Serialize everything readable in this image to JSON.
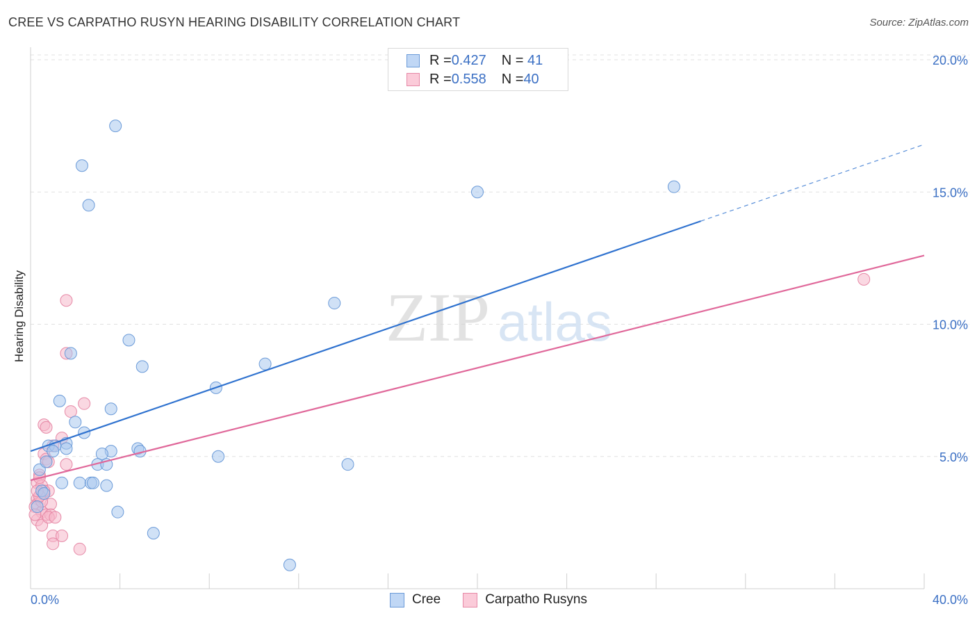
{
  "header": {
    "title": "CREE VS CARPATHO RUSYN HEARING DISABILITY CORRELATION CHART",
    "source": "Source: ZipAtlas.com"
  },
  "watermark": {
    "zip": "ZIP",
    "atlas": "atlas"
  },
  "legend": {
    "rows": [
      {
        "r_label": "R = ",
        "r_value": "0.427",
        "n_label": "N = ",
        "n_value": " 41"
      },
      {
        "r_label": "R = ",
        "r_value": "0.558",
        "n_label": "N = ",
        "n_value": "40"
      }
    ]
  },
  "bottom_legend": {
    "cree": "Cree",
    "carpatho": "Carpatho Rusyns"
  },
  "colors": {
    "cree_fill": "#aac8ef",
    "cree_stroke": "#6a9ad8",
    "cree_line": "#2f72cf",
    "carp_fill": "#f6b8cb",
    "carp_stroke": "#e688a6",
    "carp_line": "#e0689a",
    "tick_label": "#3a6fc4"
  },
  "chart_data": {
    "type": "scatter",
    "title": "CREE VS CARPATHO RUSYN HEARING DISABILITY CORRELATION CHART",
    "xlabel": "",
    "ylabel": "Hearing Disability",
    "xlim": [
      0,
      40
    ],
    "ylim": [
      0,
      20.5
    ],
    "y_ticks": [
      5,
      10,
      15,
      20
    ],
    "y_tick_labels": [
      "5.0%",
      "10.0%",
      "15.0%",
      "20.0%"
    ],
    "x_tick_labels": [
      "0.0%",
      "40.0%"
    ],
    "grid": true,
    "series": [
      {
        "name": "Cree",
        "r": 0.427,
        "n": 41,
        "trend": {
          "x0": 0,
          "y0": 5.2,
          "x1": 30,
          "y1": 13.9,
          "dashed_to_x": 40,
          "dashed_to_y": 16.8
        },
        "points": [
          [
            3.8,
            17.5
          ],
          [
            2.3,
            16.0
          ],
          [
            2.6,
            14.5
          ],
          [
            20,
            15.0
          ],
          [
            28.8,
            15.2
          ],
          [
            13.6,
            10.8
          ],
          [
            4.4,
            9.4
          ],
          [
            1.8,
            8.9
          ],
          [
            5.0,
            8.4
          ],
          [
            10.5,
            8.5
          ],
          [
            8.3,
            7.6
          ],
          [
            1.3,
            7.1
          ],
          [
            3.6,
            6.8
          ],
          [
            2.0,
            6.3
          ],
          [
            2.4,
            5.9
          ],
          [
            0.8,
            5.4
          ],
          [
            1.6,
            5.5
          ],
          [
            1.1,
            5.4
          ],
          [
            1.6,
            5.3
          ],
          [
            1.0,
            5.2
          ],
          [
            4.8,
            5.3
          ],
          [
            4.9,
            5.2
          ],
          [
            3.6,
            5.2
          ],
          [
            3.2,
            5.1
          ],
          [
            8.4,
            5.0
          ],
          [
            14.2,
            4.7
          ],
          [
            3.0,
            4.7
          ],
          [
            3.4,
            4.7
          ],
          [
            0.4,
            4.5
          ],
          [
            0.7,
            4.8
          ],
          [
            1.4,
            4.0
          ],
          [
            2.2,
            4.0
          ],
          [
            2.7,
            4.0
          ],
          [
            2.8,
            4.0
          ],
          [
            3.4,
            3.9
          ],
          [
            0.5,
            3.7
          ],
          [
            0.6,
            3.6
          ],
          [
            3.9,
            2.9
          ],
          [
            5.5,
            2.1
          ],
          [
            11.6,
            0.9
          ],
          [
            0.3,
            3.1
          ]
        ]
      },
      {
        "name": "Carpatho Rusyns",
        "r": 0.558,
        "n": 40,
        "trend": {
          "x0": 0,
          "y0": 4.1,
          "x1": 40,
          "y1": 12.6
        },
        "points": [
          [
            37.3,
            11.7
          ],
          [
            1.6,
            10.9
          ],
          [
            1.6,
            8.9
          ],
          [
            2.4,
            7.0
          ],
          [
            1.8,
            6.7
          ],
          [
            0.6,
            6.2
          ],
          [
            0.7,
            6.1
          ],
          [
            1.4,
            5.7
          ],
          [
            1.0,
            5.4
          ],
          [
            0.6,
            5.1
          ],
          [
            0.7,
            4.9
          ],
          [
            0.8,
            4.8
          ],
          [
            1.6,
            4.7
          ],
          [
            0.4,
            4.3
          ],
          [
            0.3,
            4.0
          ],
          [
            0.5,
            3.9
          ],
          [
            0.8,
            3.7
          ],
          [
            0.6,
            3.6
          ],
          [
            0.4,
            3.5
          ],
          [
            0.3,
            3.4
          ],
          [
            0.3,
            3.2
          ],
          [
            0.9,
            3.2
          ],
          [
            0.2,
            3.1
          ],
          [
            0.5,
            2.9
          ],
          [
            0.7,
            2.8
          ],
          [
            0.9,
            2.8
          ],
          [
            0.3,
            2.6
          ],
          [
            0.5,
            2.4
          ],
          [
            1.0,
            2.0
          ],
          [
            1.4,
            2.0
          ],
          [
            1.0,
            1.7
          ],
          [
            2.2,
            1.5
          ],
          [
            0.4,
            4.2
          ],
          [
            0.6,
            3.7
          ],
          [
            0.5,
            3.3
          ],
          [
            0.2,
            2.8
          ],
          [
            0.8,
            2.7
          ],
          [
            0.4,
            3.5
          ],
          [
            1.1,
            2.7
          ],
          [
            0.3,
            3.7
          ]
        ]
      }
    ]
  }
}
